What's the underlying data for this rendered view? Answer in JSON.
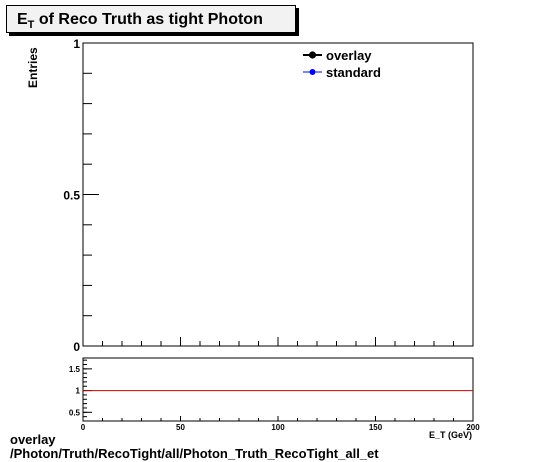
{
  "title": {
    "main": "E",
    "sub": "T",
    "rest": " of Reco Truth as tight Photon"
  },
  "chart_data": [
    {
      "type": "line",
      "ylabel": "Entries",
      "xlim": [
        0,
        200
      ],
      "ylim": [
        0,
        1
      ],
      "grid": false,
      "legend": "top-right",
      "y_ticks": [
        {
          "value": 0,
          "label": "0"
        },
        {
          "value": 0.5,
          "label": "0.5"
        },
        {
          "value": 1,
          "label": "1"
        }
      ],
      "series": [
        {
          "name": "overlay",
          "color": "#000000",
          "marker": "filled-circle",
          "x": [],
          "y": []
        },
        {
          "name": "standard",
          "color": "#0000ff",
          "marker": "filled-circle",
          "x": [],
          "y": []
        }
      ]
    },
    {
      "type": "line",
      "xlabel": "E_T (GeV)",
      "xlim": [
        0,
        200
      ],
      "ylim": [
        0.3,
        1.75
      ],
      "grid": false,
      "x_ticks": [
        {
          "value": 0,
          "label": "0"
        },
        {
          "value": 50,
          "label": "50"
        },
        {
          "value": 100,
          "label": "100"
        },
        {
          "value": 150,
          "label": "150"
        },
        {
          "value": 200,
          "label": "200"
        }
      ],
      "y_ticks": [
        {
          "value": 0.5,
          "label": "0.5"
        },
        {
          "value": 1,
          "label": "1"
        },
        {
          "value": 1.5,
          "label": "1.5"
        }
      ],
      "series": [
        {
          "color": "#cc0000",
          "x": [
            0,
            200
          ],
          "y": [
            1,
            1
          ]
        }
      ]
    }
  ],
  "footer": {
    "line1": "overlay",
    "line2": "/Photon/Truth/RecoTight/all/Photon_Truth_RecoTight_all_et"
  }
}
